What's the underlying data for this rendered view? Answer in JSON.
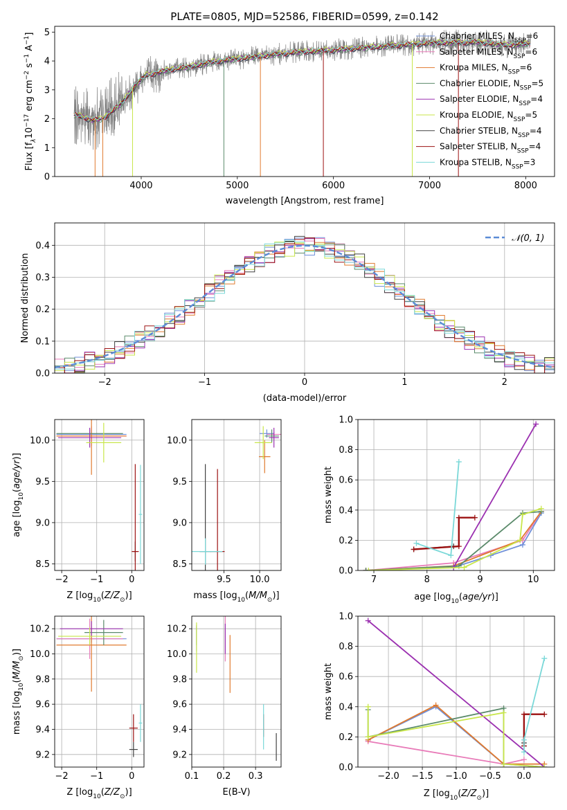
{
  "figure": {
    "title": "PLATE=0805, MJD=52586, FIBERID=0599, z=0.142"
  },
  "colors": {
    "data": "#808080",
    "gaussian": "#5b8bd6",
    "grid": "#b0b0b0"
  },
  "models": [
    {
      "name": "Chabrier MILES",
      "nssp": 6,
      "color": "#6f8fd8"
    },
    {
      "name": "Salpeter MILES",
      "nssp": 6,
      "color": "#e87ab8"
    },
    {
      "name": "Kroupa MILES",
      "nssp": 6,
      "color": "#e07a2e"
    },
    {
      "name": "Chabrier ELODIE",
      "nssp": 5,
      "color": "#5a8a6a"
    },
    {
      "name": "Salpeter ELODIE",
      "nssp": 4,
      "color": "#9b30b0"
    },
    {
      "name": "Kroupa ELODIE",
      "nssp": 5,
      "color": "#c8e64a"
    },
    {
      "name": "Chabrier STELIB",
      "nssp": 4,
      "color": "#404040"
    },
    {
      "name": "Salpeter STELIB",
      "nssp": 4,
      "color": "#9b1010"
    },
    {
      "name": "Kroupa STELIB",
      "nssp": 3,
      "color": "#7ad8d8"
    }
  ],
  "chart_data": [
    {
      "id": "spectrum",
      "type": "line",
      "xlabel": "wavelength [Angstrom, rest frame]",
      "ylabel": "Flux [f",
      "ylabel_sub": "λ",
      "ylabel_rest": "10",
      "ylabel_exp1": "−17",
      "ylabel_mid": " erg cm",
      "ylabel_exp2": "−2",
      "ylabel_mid2": " s",
      "ylabel_exp3": "−1",
      "ylabel_end": " A",
      "ylabel_exp4": "−1",
      "ylabel_close": "]",
      "xlim": [
        3100,
        8300
      ],
      "ylim": [
        0,
        5.2
      ],
      "xticks": [
        4000,
        5000,
        6000,
        7000,
        8000
      ],
      "yticks": [
        0,
        1,
        2,
        3,
        4,
        5
      ],
      "continuum_knots": [
        [
          3300,
          2.15
        ],
        [
          3500,
          1.95
        ],
        [
          3600,
          2.0
        ],
        [
          3800,
          2.55
        ],
        [
          3950,
          3.2
        ],
        [
          4050,
          3.5
        ],
        [
          4300,
          3.7
        ],
        [
          4500,
          3.8
        ],
        [
          4800,
          4.0
        ],
        [
          5200,
          4.15
        ],
        [
          5600,
          4.3
        ],
        [
          6000,
          4.38
        ],
        [
          6500,
          4.5
        ],
        [
          7000,
          4.62
        ],
        [
          7500,
          4.65
        ],
        [
          7800,
          4.55
        ],
        [
          8050,
          4.6
        ]
      ],
      "legend_nssp_label": "N",
      "legend_nssp_sub": "SSP"
    },
    {
      "id": "residual-histogram",
      "type": "step",
      "xlabel": "(data-model)/error",
      "ylabel": "Normed distribution",
      "xlim": [
        -2.5,
        2.5
      ],
      "ylim": [
        0,
        0.47
      ],
      "xticks": [
        -2,
        -1,
        0,
        1,
        2
      ],
      "yticks": [
        0,
        0.1,
        0.2,
        0.3,
        0.4
      ],
      "xtick_labels": [
        "−2",
        "−1",
        "0",
        "1",
        "2"
      ],
      "ytick_labels": [
        "0.0",
        "0.1",
        "0.2",
        "0.3",
        "0.4"
      ],
      "bin_width": 0.1,
      "legend_label": "𝒩(0, 1)"
    },
    {
      "id": "age-vs-Z",
      "type": "errorbar",
      "xlabel": "Z [log",
      "xlabel_sub": "10",
      "xlabel_rest": "(Z/Z",
      "xlabel_sun": "⊙",
      "xlabel_close": ")]",
      "ylabel": "age  [log",
      "ylabel_sub": "10",
      "ylabel_rest": "(age/yr)]",
      "xlim": [
        -2.2,
        0.35
      ],
      "ylim": [
        8.42,
        10.25
      ],
      "xticks": [
        -2,
        -1,
        0
      ],
      "yticks": [
        8.5,
        9.0,
        9.5,
        10.0
      ],
      "xtick_labels": [
        "−2",
        "−1",
        "0"
      ],
      "ytick_labels": [
        "8.5",
        "9.0",
        "9.5",
        "10.0"
      ],
      "points": [
        {
          "m": 0,
          "x": -1.15,
          "y": 10.07,
          "xerr": 1.0,
          "yerr": 0.05
        },
        {
          "m": 1,
          "x": -1.15,
          "y": 10.05,
          "xerr": 1.0,
          "yerr": 0.12
        },
        {
          "m": 2,
          "x": -1.15,
          "y": 10.05,
          "xerr": 1.0,
          "yerr": 0.47
        },
        {
          "m": 3,
          "x": -1.2,
          "y": 10.08,
          "xerr": 0.95,
          "yerr": 0.05
        },
        {
          "m": 4,
          "x": -1.2,
          "y": 10.03,
          "xerr": 0.9,
          "yerr": 0.12
        },
        {
          "m": 5,
          "x": -0.8,
          "y": 9.97,
          "xerr": 0.5,
          "yerr": 0.24
        },
        {
          "m": 6,
          "x": 0.1,
          "y": 8.65,
          "xerr": 0.07,
          "yerr": 0.12
        },
        {
          "m": 7,
          "x": 0.1,
          "y": 8.65,
          "xerr": 0.1,
          "yerr": 1.06
        },
        {
          "m": 8,
          "x": 0.25,
          "y": 9.1,
          "xerr": 0.05,
          "yerr": 0.6
        }
      ]
    },
    {
      "id": "age-vs-mass",
      "type": "errorbar",
      "xlabel": "mass [log",
      "xlabel_sub": "10",
      "xlabel_rest": "(M/M",
      "xlabel_sun": "⊙",
      "xlabel_close": ")]",
      "xlim": [
        9.05,
        10.3
      ],
      "ylim": [
        8.42,
        10.25
      ],
      "xticks": [
        9.5,
        10.0
      ],
      "yticks": [
        8.5,
        9.0,
        9.5,
        10.0
      ],
      "xtick_labels": [
        "9.5",
        "10.0"
      ],
      "ytick_labels": [
        "8.5",
        "9.0",
        "9.5",
        "10.0"
      ],
      "points": [
        {
          "m": 0,
          "x": 10.1,
          "y": 10.08,
          "xerr": 0.1,
          "yerr": 0.05
        },
        {
          "m": 1,
          "x": 10.2,
          "y": 10.07,
          "xerr": 0.1,
          "yerr": 0.03
        },
        {
          "m": 2,
          "x": 10.07,
          "y": 9.8,
          "xerr": 0.08,
          "yerr": 0.2
        },
        {
          "m": 3,
          "x": 10.17,
          "y": 10.05,
          "xerr": 0.1,
          "yerr": 0.08
        },
        {
          "m": 4,
          "x": 10.2,
          "y": 10.03,
          "xerr": 0.07,
          "yerr": 0.12
        },
        {
          "m": 5,
          "x": 10.05,
          "y": 9.97,
          "xerr": 0.12,
          "yerr": 0.2
        },
        {
          "m": 6,
          "x": 9.24,
          "y": 8.65,
          "xerr": 0.08,
          "yerr": 1.06
        },
        {
          "m": 7,
          "x": 9.41,
          "y": 8.65,
          "xerr": 0.1,
          "yerr": 1.0
        },
        {
          "m": 8,
          "x": 9.24,
          "y": 8.65,
          "xerr": 0.24,
          "yerr": 0.16
        }
      ]
    },
    {
      "id": "weight-vs-age",
      "type": "line",
      "xlabel": "age  [log",
      "xlabel_sub": "10",
      "xlabel_rest": "(age/yr)]",
      "ylabel": "mass weight",
      "xlim": [
        6.7,
        10.4
      ],
      "ylim": [
        0,
        1.0
      ],
      "xticks": [
        7,
        8,
        9,
        10
      ],
      "yticks": [
        0,
        0.2,
        0.4,
        0.6,
        0.8,
        1.0
      ],
      "xtick_labels": [
        "7",
        "8",
        "9",
        "10"
      ],
      "ytick_labels": [
        "0.0",
        "0.2",
        "0.4",
        "0.6",
        "0.8",
        "1.0"
      ],
      "series": [
        {
          "m": 0,
          "points": [
            [
              6.85,
              0.0
            ],
            [
              8.5,
              0.02
            ],
            [
              9.2,
              0.1
            ],
            [
              9.8,
              0.17
            ],
            [
              10.15,
              0.38
            ]
          ]
        },
        {
          "m": 1,
          "points": [
            [
              6.85,
              0.0
            ],
            [
              8.5,
              0.05
            ],
            [
              9.8,
              0.2
            ],
            [
              10.15,
              0.39
            ]
          ]
        },
        {
          "m": 2,
          "points": [
            [
              6.85,
              0.0
            ],
            [
              8.5,
              0.03
            ],
            [
              9.75,
              0.2
            ],
            [
              10.15,
              0.39
            ]
          ]
        },
        {
          "m": 3,
          "points": [
            [
              6.85,
              0.0
            ],
            [
              8.6,
              0.03
            ],
            [
              9.8,
              0.38
            ],
            [
              10.15,
              0.39
            ]
          ]
        },
        {
          "m": 4,
          "points": [
            [
              8.5,
              0.02
            ],
            [
              10.05,
              0.97
            ]
          ]
        },
        {
          "m": 5,
          "points": [
            [
              6.9,
              0.0
            ],
            [
              8.7,
              0.02
            ],
            [
              9.75,
              0.2
            ],
            [
              9.8,
              0.37
            ],
            [
              10.15,
              0.41
            ]
          ]
        },
        {
          "m": 6,
          "points": [
            [
              7.75,
              0.14
            ],
            [
              8.5,
              0.16
            ]
          ]
        },
        {
          "m": 7,
          "points": [
            [
              7.75,
              0.14
            ],
            [
              8.6,
              0.16
            ],
            [
              8.6,
              0.35
            ],
            [
              8.9,
              0.35
            ]
          ]
        },
        {
          "m": 8,
          "points": [
            [
              7.8,
              0.18
            ],
            [
              8.45,
              0.1
            ],
            [
              8.6,
              0.72
            ]
          ]
        }
      ]
    },
    {
      "id": "mass-vs-Z",
      "type": "errorbar",
      "xlabel": "Z [log",
      "xlabel_sub": "10",
      "xlabel_rest": "(Z/Z",
      "xlabel_sun": "⊙",
      "xlabel_close": ")]",
      "ylabel": "mass [log",
      "ylabel_sub": "10",
      "ylabel_rest": "(M/M",
      "ylabel_sun": "⊙",
      "ylabel_close": ")]",
      "xlim": [
        -2.2,
        0.35
      ],
      "ylim": [
        9.1,
        10.3
      ],
      "xticks": [
        -2,
        -1,
        0
      ],
      "yticks": [
        9.2,
        9.4,
        9.6,
        9.8,
        10.0,
        10.2
      ],
      "xtick_labels": [
        "−2",
        "−1",
        "0"
      ],
      "ytick_labels": [
        "9.2",
        "9.4",
        "9.6",
        "9.8",
        "10.0",
        "10.2"
      ],
      "points": [
        {
          "m": 0,
          "x": -1.15,
          "y": 10.12,
          "xerr": 1.0,
          "yerr": 0.03
        },
        {
          "m": 1,
          "x": -1.2,
          "y": 10.12,
          "xerr": 0.95,
          "yerr": 0.16
        },
        {
          "m": 2,
          "x": -1.15,
          "y": 10.07,
          "xerr": 1.0,
          "yerr": 0.37
        },
        {
          "m": 3,
          "x": -0.8,
          "y": 10.17,
          "xerr": 0.55,
          "yerr": 0.1
        },
        {
          "m": 4,
          "x": -1.15,
          "y": 10.2,
          "xerr": 0.9,
          "yerr": 0.06
        },
        {
          "m": 5,
          "x": -1.2,
          "y": 10.14,
          "xerr": 0.9,
          "yerr": 0.07
        },
        {
          "m": 6,
          "x": 0.05,
          "y": 9.24,
          "xerr": 0.12,
          "yerr": 0.06
        },
        {
          "m": 7,
          "x": 0.05,
          "y": 9.41,
          "xerr": 0.12,
          "yerr": 0.11
        },
        {
          "m": 8,
          "x": 0.25,
          "y": 9.45,
          "xerr": 0.05,
          "yerr": 0.15
        }
      ]
    },
    {
      "id": "mass-vs-EBV",
      "type": "errorbar",
      "xlabel": "E(B-V)",
      "xlim": [
        0.1,
        0.38
      ],
      "ylim": [
        9.1,
        10.3
      ],
      "xticks": [
        0.1,
        0.2,
        0.3
      ],
      "yticks": [
        9.2,
        9.4,
        9.6,
        9.8,
        10.0,
        10.2
      ],
      "xtick_labels": [
        "0.1",
        "0.2",
        "0.3"
      ],
      "ytick_labels": [
        "9.2",
        "9.4",
        "9.6",
        "9.8",
        "10.0",
        "10.2"
      ],
      "points": [
        {
          "m": 0,
          "x": 0.115,
          "y": 10.12,
          "xerr": 0.0,
          "yerr": 0.1
        },
        {
          "m": 1,
          "x": 0.205,
          "y": 10.12,
          "xerr": 0.0,
          "yerr": 0.18
        },
        {
          "m": 2,
          "x": 0.22,
          "y": 9.92,
          "xerr": 0.0,
          "yerr": 0.23
        },
        {
          "m": 3,
          "x": 0.115,
          "y": 10.15,
          "xerr": 0.0,
          "yerr": 0.08
        },
        {
          "m": 4,
          "x": 0.205,
          "y": 10.12,
          "xerr": 0.0,
          "yerr": 0.12
        },
        {
          "m": 5,
          "x": 0.115,
          "y": 10.05,
          "xerr": 0.0,
          "yerr": 0.2
        },
        {
          "m": 6,
          "x": 0.365,
          "y": 9.26,
          "xerr": 0.0,
          "yerr": 0.11
        },
        {
          "m": 7,
          "x": 0.325,
          "y": 9.43,
          "xerr": 0.0,
          "yerr": 0.09
        },
        {
          "m": 8,
          "x": 0.325,
          "y": 9.42,
          "xerr": 0.0,
          "yerr": 0.18
        }
      ]
    },
    {
      "id": "weight-vs-Z",
      "type": "line",
      "xlabel": "Z [log",
      "xlabel_sub": "10",
      "xlabel_rest": "(Z/Z",
      "xlabel_sun": "⊙",
      "xlabel_close": ")]",
      "ylabel": "mass weight",
      "xlim": [
        -2.45,
        0.45
      ],
      "ylim": [
        0,
        1.0
      ],
      "xticks": [
        -2.0,
        -1.5,
        -1.0,
        -0.5,
        0.0
      ],
      "yticks": [
        0,
        0.2,
        0.4,
        0.6,
        0.8,
        1.0
      ],
      "xtick_labels": [
        "−2.0",
        "−1.5",
        "−1.0",
        "−0.5",
        "0.0"
      ],
      "ytick_labels": [
        "0.0",
        "0.2",
        "0.4",
        "0.6",
        "0.8",
        "1.0"
      ],
      "series": [
        {
          "m": 0,
          "points": [
            [
              -2.3,
              0.18
            ],
            [
              -1.3,
              0.4
            ],
            [
              -0.3,
              0.02
            ],
            [
              0.3,
              0.0
            ]
          ]
        },
        {
          "m": 1,
          "points": [
            [
              -2.3,
              0.17
            ],
            [
              -0.3,
              0.02
            ],
            [
              0.0,
              0.05
            ]
          ]
        },
        {
          "m": 2,
          "points": [
            [
              -2.3,
              0.18
            ],
            [
              -1.3,
              0.41
            ],
            [
              -0.3,
              0.02
            ],
            [
              0.3,
              0.02
            ]
          ]
        },
        {
          "m": 3,
          "points": [
            [
              -2.3,
              0.38
            ],
            [
              -2.3,
              0.2
            ],
            [
              -0.3,
              0.39
            ],
            [
              -0.3,
              0.02
            ]
          ]
        },
        {
          "m": 4,
          "points": [
            [
              -2.3,
              0.97
            ],
            [
              0.3,
              0.0
            ]
          ]
        },
        {
          "m": 5,
          "points": [
            [
              -2.3,
              0.4
            ],
            [
              -2.3,
              0.2
            ],
            [
              -0.3,
              0.36
            ],
            [
              -0.3,
              0.02
            ],
            [
              0.3,
              0.0
            ]
          ]
        },
        {
          "m": 6,
          "points": [
            [
              0.0,
              0.14
            ],
            [
              0.0,
              0.16
            ]
          ]
        },
        {
          "m": 7,
          "points": [
            [
              0.0,
              0.14
            ],
            [
              0.0,
              0.35
            ],
            [
              0.3,
              0.35
            ]
          ]
        },
        {
          "m": 8,
          "points": [
            [
              0.0,
              0.1
            ],
            [
              0.0,
              0.18
            ],
            [
              0.3,
              0.72
            ]
          ]
        }
      ]
    }
  ]
}
